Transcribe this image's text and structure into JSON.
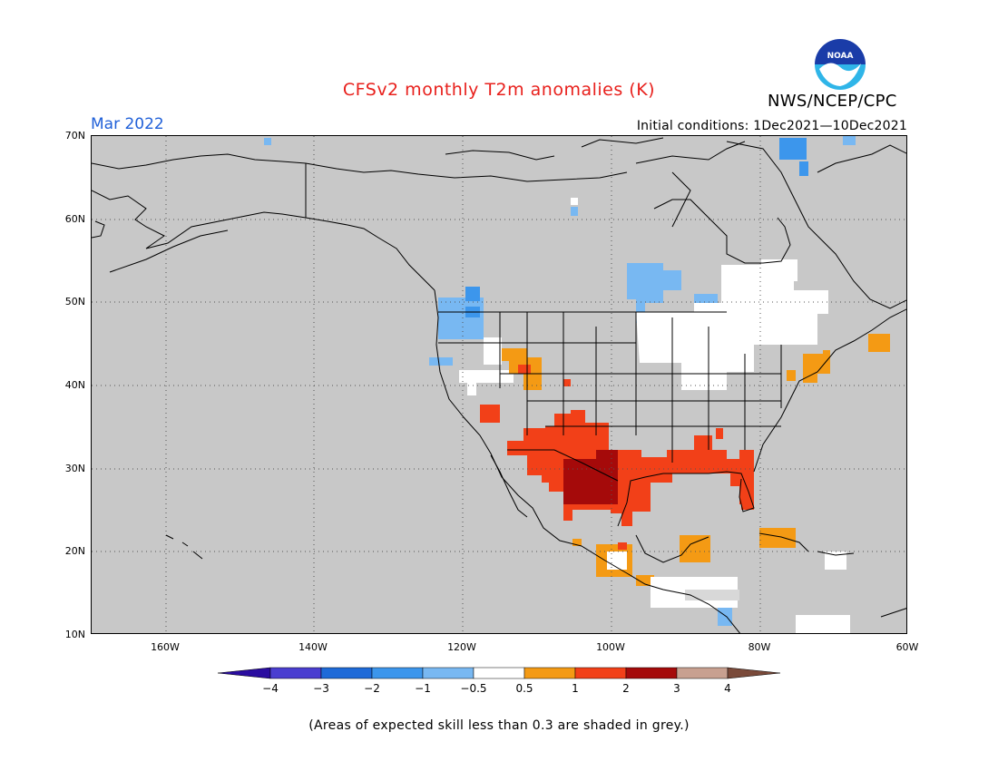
{
  "header": {
    "title": "CFSv2 monthly T2m anomalies (K)",
    "org": "NWS/NCEP/CPC",
    "logo_text": "NOAA",
    "month": "Mar 2022",
    "initial_conditions": "Initial conditions: 1Dec2021—10Dec2021"
  },
  "axes": {
    "lat_labels": [
      "70N",
      "60N",
      "50N",
      "40N",
      "30N",
      "20N",
      "10N"
    ],
    "lon_labels": [
      "160W",
      "140W",
      "120W",
      "100W",
      "80W",
      "60W"
    ],
    "lat_range": [
      10,
      70
    ],
    "lon_range": [
      -170,
      -60
    ],
    "grid": "dotted"
  },
  "colorbar": {
    "ticks": [
      "−4",
      "−3",
      "−2",
      "−1",
      "−0.5",
      "0.5",
      "1",
      "2",
      "3",
      "4"
    ],
    "colors": [
      "#2a0da0",
      "#4a3ed0",
      "#1e6ad8",
      "#3c96ec",
      "#78b8f2",
      "#ffffff",
      "#f49a14",
      "#f24018",
      "#a50a0a",
      "#c8a090",
      "#7a4a3a"
    ]
  },
  "footnote": "(Areas of expected skill less than 0.3 are shaded in grey.)",
  "colors": {
    "skill_mask": "#c8c8c8",
    "title_red": "#e8201c",
    "month_blue": "#2060d8"
  }
}
